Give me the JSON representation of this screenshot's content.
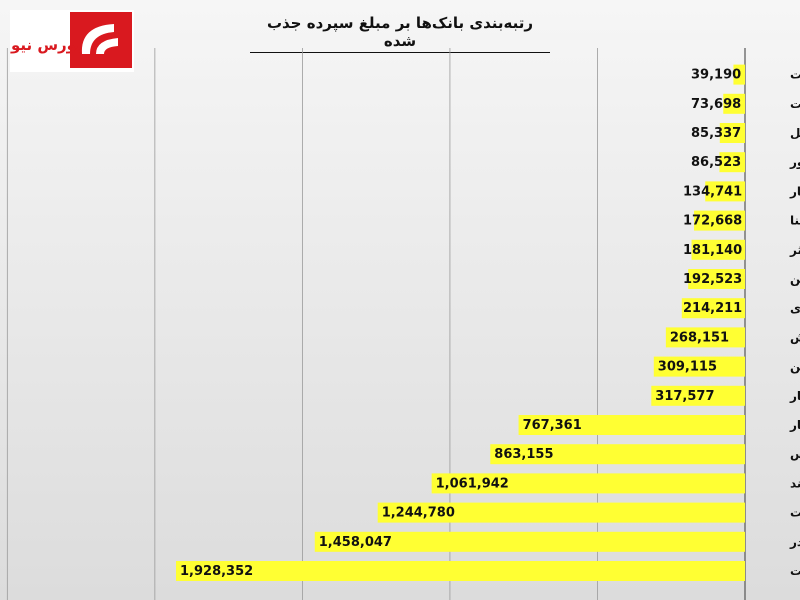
{
  "logo": {
    "text": "بورس نیوز",
    "colors": {
      "red": "#d9191f",
      "white": "#ffffff"
    }
  },
  "chart_data": {
    "type": "bar",
    "orientation": "horizontal",
    "title": "رتبه‌بندی بانک‌ها بر مبلغ سپرده جذب شده",
    "categories": [
      "حکمت",
      "وپست",
      "وملل",
      "وخاور",
      "وکار",
      "وسینا",
      "وکوثر",
      "وزمین",
      "دی",
      "وگردش",
      "ونوین",
      "وانصار",
      "وپاسار",
      "وپارس",
      "وآیند",
      "وتجارت",
      "وبصادر",
      "وبملت"
    ],
    "values": [
      39190,
      73698,
      85337,
      86523,
      134741,
      172668,
      181140,
      192523,
      214211,
      268151,
      309115,
      317577,
      767361,
      863155,
      1061942,
      1244780,
      1458047,
      1928352
    ],
    "value_labels": [
      "39,190",
      "73,698",
      "85,337",
      "86,523",
      "134,741",
      "172,668",
      "181,140",
      "192,523",
      "214,211",
      "268,151",
      "309,115",
      "317,577",
      "767,361",
      "863,155",
      "1,061,942",
      "1,244,780",
      "1,458,047",
      "1,928,352"
    ],
    "xlim": [
      0,
      2500000
    ],
    "grid_interval": 500000,
    "grid": true,
    "bar_color": "#ffff33",
    "direction": "right-to-left"
  }
}
